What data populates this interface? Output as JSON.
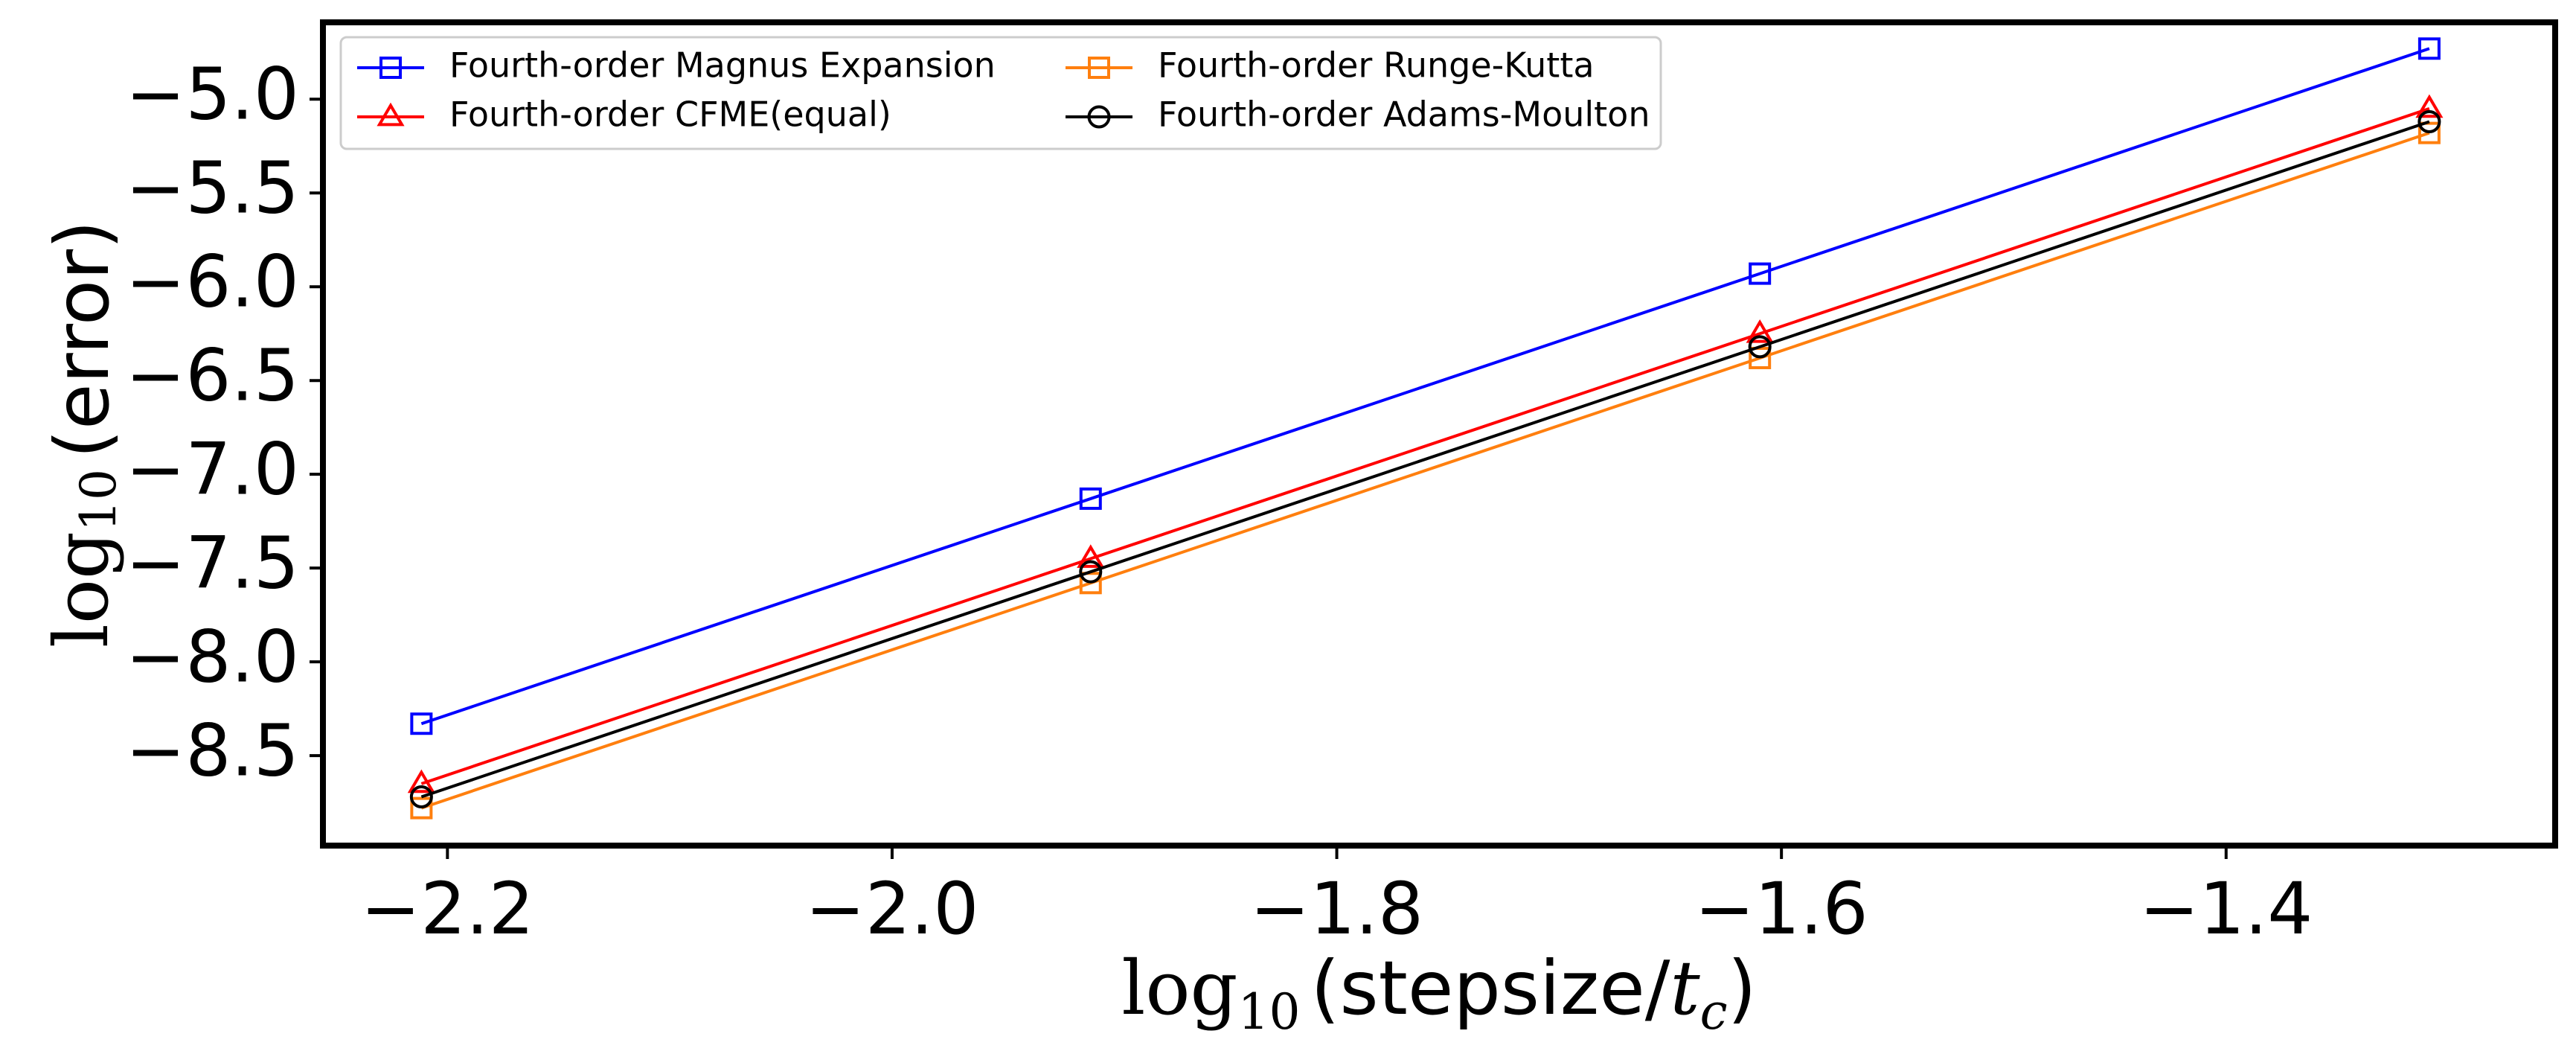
{
  "chart_data": {
    "type": "line",
    "title": "",
    "xlabel": {
      "prefix": "log",
      "subscript": "10",
      "open": "(stepsize/",
      "var": "t",
      "var_sub": "c",
      "close": ")"
    },
    "ylabel": {
      "prefix": "log",
      "subscript": "10",
      "text": "(error)"
    },
    "xlim": [
      -2.256,
      -1.252
    ],
    "ylim": [
      -8.98,
      -4.59
    ],
    "xticks": [
      -2.2,
      -2.0,
      -1.8,
      -1.6,
      -1.4
    ],
    "xtick_labels": [
      "−2.2",
      "−2.0",
      "−1.8",
      "−1.6",
      "−1.4"
    ],
    "yticks": [
      -5.0,
      -5.5,
      -6.0,
      -6.5,
      -7.0,
      -7.5,
      -8.0,
      -8.5
    ],
    "ytick_labels": [
      "−5.0",
      "−5.5",
      "−6.0",
      "−6.5",
      "−7.0",
      "−7.5",
      "−8.0",
      "−8.5"
    ],
    "grid": false,
    "legend_position": "top-left",
    "x": [
      -2.2117,
      -1.9107,
      -1.6097,
      -1.3086
    ],
    "series": [
      {
        "name": "Fourth-order Magnus Expansion",
        "color": "#0000ff",
        "marker": "square",
        "values": [
          -8.33,
          -7.13,
          -5.93,
          -4.73
        ]
      },
      {
        "name": "Fourth-order CFME(equal)",
        "color": "#ff0000",
        "marker": "triangle",
        "values": [
          -8.65,
          -7.45,
          -6.25,
          -5.05
        ]
      },
      {
        "name": "Fourth-order Runge-Kutta",
        "color": "#ff7f0e",
        "marker": "square",
        "values": [
          -8.78,
          -7.58,
          -6.38,
          -5.18
        ]
      },
      {
        "name": "Fourth-order Adams-Moulton",
        "color": "#000000",
        "marker": "circle",
        "values": [
          -8.72,
          -7.52,
          -6.32,
          -5.12
        ]
      }
    ]
  }
}
